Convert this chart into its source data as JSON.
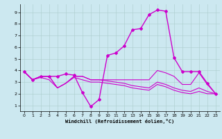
{
  "title": "",
  "xlabel": "Windchill (Refroidissement éolien,°C)",
  "background_color": "#cce8f0",
  "line_color": "#cc00cc",
  "xlim": [
    -0.5,
    23.5
  ],
  "ylim": [
    0.5,
    9.7
  ],
  "xticks": [
    0,
    1,
    2,
    3,
    4,
    5,
    6,
    7,
    8,
    9,
    10,
    11,
    12,
    13,
    14,
    15,
    16,
    17,
    18,
    19,
    20,
    21,
    22,
    23
  ],
  "yticks": [
    1,
    2,
    3,
    4,
    5,
    6,
    7,
    8,
    9
  ],
  "grid_color": "#aacccc",
  "lines": [
    {
      "x": [
        0,
        1,
        2,
        3,
        4,
        5,
        6,
        7,
        8,
        9,
        10,
        11,
        12,
        13,
        14,
        15,
        16,
        17,
        18,
        19,
        20,
        21,
        22,
        23
      ],
      "y": [
        3.9,
        3.2,
        3.5,
        3.5,
        3.5,
        3.7,
        3.6,
        2.1,
        0.9,
        1.5,
        5.3,
        5.5,
        6.1,
        7.5,
        7.6,
        8.8,
        9.2,
        9.1,
        5.1,
        3.9,
        3.9,
        3.9,
        2.9,
        2.0
      ],
      "marker": "D",
      "markersize": 2.0,
      "linewidth": 1.0
    },
    {
      "x": [
        0,
        1,
        2,
        3,
        4,
        5,
        6,
        7,
        8,
        9,
        10,
        11,
        12,
        13,
        14,
        15,
        16,
        17,
        18,
        19,
        20,
        21,
        22,
        23
      ],
      "y": [
        3.9,
        3.2,
        3.5,
        3.5,
        2.5,
        2.9,
        3.5,
        3.5,
        3.2,
        3.2,
        3.2,
        3.2,
        3.2,
        3.2,
        3.2,
        3.2,
        4.0,
        3.8,
        3.5,
        2.8,
        2.8,
        3.8,
        2.8,
        2.0
      ],
      "marker": null,
      "markersize": 0,
      "linewidth": 0.8
    },
    {
      "x": [
        0,
        1,
        2,
        3,
        4,
        5,
        6,
        7,
        8,
        9,
        10,
        11,
        12,
        13,
        14,
        15,
        16,
        17,
        18,
        19,
        20,
        21,
        22,
        23
      ],
      "y": [
        3.9,
        3.2,
        3.5,
        3.5,
        2.5,
        2.9,
        3.5,
        3.5,
        3.2,
        3.2,
        3.1,
        3.0,
        2.9,
        2.7,
        2.6,
        2.5,
        3.0,
        2.8,
        2.5,
        2.3,
        2.2,
        2.5,
        2.2,
        2.0
      ],
      "marker": null,
      "markersize": 0,
      "linewidth": 0.8
    },
    {
      "x": [
        0,
        1,
        2,
        3,
        4,
        5,
        6,
        7,
        8,
        9,
        10,
        11,
        12,
        13,
        14,
        15,
        16,
        17,
        18,
        19,
        20,
        21,
        22,
        23
      ],
      "y": [
        3.9,
        3.2,
        3.4,
        3.2,
        2.5,
        2.9,
        3.4,
        3.2,
        3.0,
        3.0,
        2.9,
        2.8,
        2.7,
        2.5,
        2.4,
        2.3,
        2.8,
        2.6,
        2.3,
        2.1,
        2.0,
        2.2,
        2.0,
        2.0
      ],
      "marker": null,
      "markersize": 0,
      "linewidth": 0.8
    }
  ]
}
